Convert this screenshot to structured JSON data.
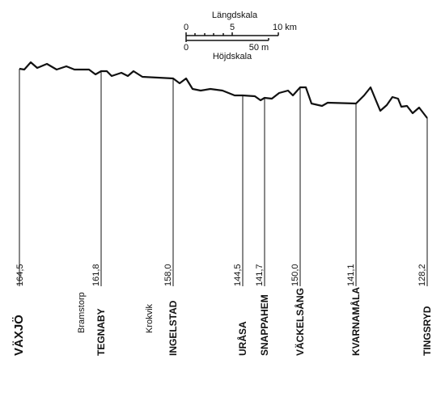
{
  "scale": {
    "length_title": "Längdskala",
    "length_start": "0",
    "length_mid": "5",
    "length_end": "10 km",
    "height_start": "0",
    "height_end": "50 m",
    "height_title": "Höjdskala"
  },
  "stations": [
    {
      "name": "VÄXJÖ",
      "elevation": "164,5"
    },
    {
      "name": "TEGNABY",
      "elevation": "161,8"
    },
    {
      "name": "INGELSTAD",
      "elevation": "158,0"
    },
    {
      "name": "URÅSA",
      "elevation": "144,5"
    },
    {
      "name": "SNAPPAHEM",
      "elevation": "141,7"
    },
    {
      "name": "VÄCKELSÅNG",
      "elevation": "150,0"
    },
    {
      "name": "KVARNAMÅLA",
      "elevation": "141,1"
    },
    {
      "name": "TINGSRYD",
      "elevation": "128,2"
    }
  ],
  "halts": [
    "Bramstorp",
    "Krokvik"
  ]
}
